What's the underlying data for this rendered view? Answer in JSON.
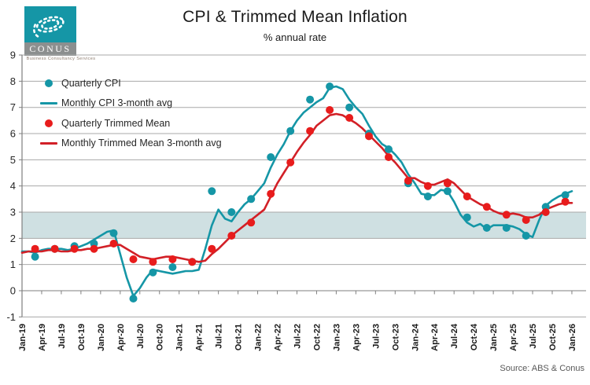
{
  "header": {
    "title": "CPI & Trimmed Mean Inflation",
    "subtitle": "% annual rate"
  },
  "logo": {
    "name": "CONUS",
    "caption": "Business Consultancy Services",
    "teal": "#1596A6",
    "band_gray": "#8C8F8F"
  },
  "source": "Source: ABS & Conus",
  "colors": {
    "cpi": "#1596A6",
    "trimmed_dot": "#E81C1C",
    "trimmed_line": "#D22027",
    "band": "#CFE0E2",
    "grid": "#A8A8A8",
    "axis": "#7F7F7F",
    "tick_text": "#262626"
  },
  "legend": [
    {
      "label": "Quarterly CPI",
      "marker": "dot",
      "color": "#1596A6"
    },
    {
      "label": "Monthly CPI 3-month avg",
      "marker": "line",
      "color": "#1596A6"
    },
    {
      "label": "Quarterly Trimmed Mean",
      "marker": "dot",
      "color": "#E81C1C"
    },
    {
      "label": "Monthly Trimmed Mean 3-month avg",
      "marker": "line",
      "color": "#D22027"
    }
  ],
  "chart_data": {
    "type": "line",
    "title": "CPI & Trimmed Mean Inflation",
    "subtitle": "% annual rate",
    "ylabel": "",
    "xlabel": "",
    "ylim": [
      -1,
      9
    ],
    "yticks": [
      9,
      8,
      7,
      6,
      5,
      4,
      3,
      2,
      1,
      0,
      -1
    ],
    "target_band": [
      2,
      3
    ],
    "grid": true,
    "legend_position": "top-left",
    "x_tick_labels": [
      "Jan-19",
      "Apr-19",
      "Jul-19",
      "Oct-19",
      "Jan-20",
      "Apr-20",
      "Jul-20",
      "Oct-20",
      "Jan-21",
      "Apr-21",
      "Jul-21",
      "Oct-21",
      "Jan-22",
      "Apr-22",
      "Jul-22",
      "Oct-22",
      "Jan-23",
      "Apr-23",
      "Jul-23",
      "Oct-23",
      "Jan-24",
      "Apr-24",
      "Jul-24",
      "Oct-24",
      "Jan-25",
      "Apr-25",
      "Jul-25",
      "Oct-25",
      "Jan-26"
    ],
    "series": [
      {
        "name": "Quarterly CPI",
        "style": "points",
        "color": "#1596A6",
        "x": [
          "Mar-19",
          "Jun-19",
          "Sep-19",
          "Dec-19",
          "Mar-20",
          "Jun-20",
          "Sep-20",
          "Dec-20",
          "Mar-21",
          "Jun-21",
          "Sep-21",
          "Dec-21",
          "Mar-22",
          "Jun-22",
          "Sep-22",
          "Dec-22",
          "Mar-23",
          "Jun-23",
          "Sep-23",
          "Dec-23",
          "Mar-24",
          "Jun-24",
          "Sep-24",
          "Dec-24",
          "Mar-25",
          "Jun-25",
          "Sep-25",
          "Dec-25"
        ],
        "values": [
          1.3,
          1.6,
          1.7,
          1.8,
          2.2,
          -0.3,
          0.7,
          0.9,
          1.1,
          3.8,
          3.0,
          3.5,
          5.1,
          6.1,
          7.3,
          7.8,
          7.0,
          6.0,
          5.4,
          4.1,
          3.6,
          3.8,
          2.8,
          2.4,
          2.4,
          2.1,
          3.2,
          3.65
        ]
      },
      {
        "name": "Monthly CPI 3-month avg",
        "style": "line",
        "color": "#1596A6",
        "x_start": "Jan-19",
        "values": [
          1.5,
          1.5,
          1.45,
          1.55,
          1.6,
          1.6,
          1.6,
          1.55,
          1.6,
          1.7,
          1.8,
          1.95,
          2.1,
          2.25,
          2.3,
          1.4,
          0.5,
          -0.2,
          0.1,
          0.5,
          0.8,
          0.75,
          0.7,
          0.65,
          0.7,
          0.75,
          0.75,
          0.8,
          1.6,
          2.5,
          3.1,
          2.75,
          2.65,
          3.0,
          3.3,
          3.5,
          3.8,
          4.1,
          4.7,
          5.2,
          5.6,
          6.1,
          6.5,
          6.8,
          7.0,
          7.2,
          7.35,
          7.75,
          7.8,
          7.7,
          7.3,
          7.0,
          6.75,
          6.3,
          5.9,
          5.6,
          5.45,
          5.2,
          4.9,
          4.45,
          4.1,
          3.7,
          3.65,
          3.65,
          3.85,
          3.8,
          3.4,
          2.9,
          2.6,
          2.45,
          2.55,
          2.35,
          2.5,
          2.5,
          2.5,
          2.45,
          2.35,
          2.15,
          2.05,
          2.7,
          3.25,
          3.45,
          3.6,
          3.7,
          3.8
        ]
      },
      {
        "name": "Quarterly Trimmed Mean",
        "style": "points",
        "color": "#E81C1C",
        "x": [
          "Mar-19",
          "Jun-19",
          "Sep-19",
          "Dec-19",
          "Mar-20",
          "Jun-20",
          "Sep-20",
          "Dec-20",
          "Mar-21",
          "Jun-21",
          "Sep-21",
          "Dec-21",
          "Mar-22",
          "Jun-22",
          "Sep-22",
          "Dec-22",
          "Mar-23",
          "Jun-23",
          "Sep-23",
          "Dec-23",
          "Mar-24",
          "Jun-24",
          "Sep-24",
          "Dec-24",
          "Mar-25",
          "Jun-25",
          "Sep-25",
          "Dec-25"
        ],
        "values": [
          1.6,
          1.6,
          1.6,
          1.6,
          1.8,
          1.2,
          1.1,
          1.2,
          1.1,
          1.6,
          2.1,
          2.6,
          3.7,
          4.9,
          6.1,
          6.9,
          6.6,
          5.9,
          5.1,
          4.2,
          4.0,
          4.1,
          3.6,
          3.2,
          2.9,
          2.7,
          3.0,
          3.4
        ]
      },
      {
        "name": "Monthly Trimmed Mean 3-month avg",
        "style": "line",
        "color": "#D22027",
        "x_start": "Jan-19",
        "values": [
          1.45,
          1.5,
          1.5,
          1.5,
          1.55,
          1.55,
          1.5,
          1.5,
          1.55,
          1.55,
          1.6,
          1.6,
          1.65,
          1.7,
          1.75,
          1.75,
          1.6,
          1.45,
          1.3,
          1.25,
          1.2,
          1.25,
          1.3,
          1.3,
          1.25,
          1.2,
          1.15,
          1.1,
          1.15,
          1.4,
          1.6,
          1.85,
          2.1,
          2.3,
          2.5,
          2.7,
          2.9,
          3.1,
          3.6,
          4.1,
          4.5,
          4.9,
          5.3,
          5.65,
          5.95,
          6.3,
          6.5,
          6.7,
          6.75,
          6.7,
          6.55,
          6.4,
          6.2,
          5.95,
          5.7,
          5.45,
          5.15,
          4.9,
          4.6,
          4.3,
          4.3,
          4.15,
          4.05,
          4.05,
          4.15,
          4.25,
          4.1,
          3.85,
          3.6,
          3.45,
          3.3,
          3.2,
          3.05,
          2.95,
          2.9,
          2.95,
          2.9,
          2.8,
          2.8,
          2.9,
          3.1,
          3.2,
          3.3,
          3.35,
          3.35
        ]
      }
    ]
  }
}
